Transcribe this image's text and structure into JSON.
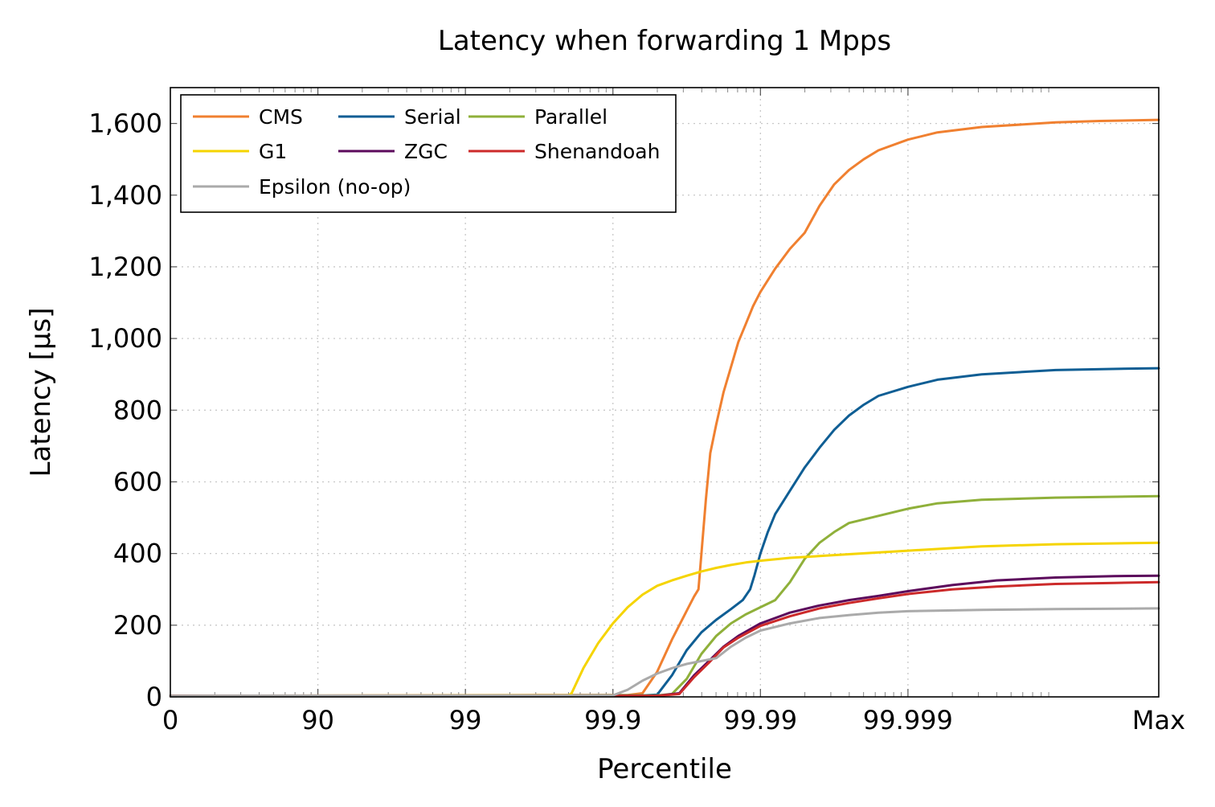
{
  "chart_data": {
    "type": "line",
    "title": "Latency when forwarding 1 Mpps",
    "xlabel": "Percentile",
    "ylabel": "Latency [μs]",
    "x_scale": "log of 1/(1-p)",
    "x_ticks": [
      {
        "label": "0",
        "nines": 0
      },
      {
        "label": "90",
        "nines": 1
      },
      {
        "label": "99",
        "nines": 2
      },
      {
        "label": "99.9",
        "nines": 3
      },
      {
        "label": "99.99",
        "nines": 4
      },
      {
        "label": "99.999",
        "nines": 5
      },
      {
        "label": "Max",
        "nines": 6.7
      }
    ],
    "xlim": [
      0,
      6.7
    ],
    "ylim": [
      0,
      1700
    ],
    "y_ticks": [
      {
        "value": 0,
        "label": "0"
      },
      {
        "value": 200,
        "label": "200"
      },
      {
        "value": 400,
        "label": "400"
      },
      {
        "value": 600,
        "label": "600"
      },
      {
        "value": 800,
        "label": "800"
      },
      {
        "value": 1000,
        "label": "1,000"
      },
      {
        "value": 1200,
        "label": "1,200"
      },
      {
        "value": 1400,
        "label": "1,400"
      },
      {
        "value": 1600,
        "label": "1,600"
      }
    ],
    "grid": true,
    "legend_position": "top-left",
    "series": [
      {
        "name": "CMS",
        "color": "#f08030",
        "points": [
          [
            0,
            3
          ],
          [
            2.5,
            5
          ],
          [
            3.1,
            5
          ],
          [
            3.2,
            10
          ],
          [
            3.3,
            70
          ],
          [
            3.4,
            160
          ],
          [
            3.5,
            240
          ],
          [
            3.55,
            280
          ],
          [
            3.58,
            300
          ],
          [
            3.6,
            400
          ],
          [
            3.63,
            550
          ],
          [
            3.66,
            680
          ],
          [
            3.7,
            760
          ],
          [
            3.75,
            850
          ],
          [
            3.8,
            920
          ],
          [
            3.85,
            990
          ],
          [
            3.9,
            1040
          ],
          [
            3.95,
            1090
          ],
          [
            4.0,
            1130
          ],
          [
            4.1,
            1195
          ],
          [
            4.2,
            1250
          ],
          [
            4.3,
            1295
          ],
          [
            4.4,
            1370
          ],
          [
            4.5,
            1430
          ],
          [
            4.6,
            1470
          ],
          [
            4.7,
            1500
          ],
          [
            4.8,
            1525
          ],
          [
            5.0,
            1555
          ],
          [
            5.2,
            1575
          ],
          [
            5.5,
            1590
          ],
          [
            6.0,
            1603
          ],
          [
            6.3,
            1607
          ],
          [
            6.7,
            1610
          ]
        ]
      },
      {
        "name": "Serial",
        "color": "#0f5e94",
        "points": [
          [
            0,
            3
          ],
          [
            3.2,
            4
          ],
          [
            3.3,
            6
          ],
          [
            3.4,
            60
          ],
          [
            3.5,
            130
          ],
          [
            3.6,
            180
          ],
          [
            3.7,
            215
          ],
          [
            3.8,
            245
          ],
          [
            3.88,
            270
          ],
          [
            3.93,
            300
          ],
          [
            3.96,
            340
          ],
          [
            4.0,
            400
          ],
          [
            4.05,
            460
          ],
          [
            4.1,
            510
          ],
          [
            4.2,
            575
          ],
          [
            4.3,
            640
          ],
          [
            4.4,
            695
          ],
          [
            4.5,
            745
          ],
          [
            4.6,
            785
          ],
          [
            4.7,
            815
          ],
          [
            4.8,
            840
          ],
          [
            5.0,
            865
          ],
          [
            5.2,
            885
          ],
          [
            5.5,
            900
          ],
          [
            6.0,
            912
          ],
          [
            6.5,
            916
          ],
          [
            6.7,
            917
          ]
        ]
      },
      {
        "name": "Parallel",
        "color": "#8fb03a",
        "points": [
          [
            0,
            3
          ],
          [
            3.3,
            4
          ],
          [
            3.4,
            8
          ],
          [
            3.5,
            50
          ],
          [
            3.6,
            120
          ],
          [
            3.7,
            170
          ],
          [
            3.8,
            205
          ],
          [
            3.9,
            230
          ],
          [
            4.0,
            250
          ],
          [
            4.1,
            270
          ],
          [
            4.2,
            320
          ],
          [
            4.3,
            385
          ],
          [
            4.4,
            430
          ],
          [
            4.5,
            460
          ],
          [
            4.6,
            485
          ],
          [
            4.8,
            505
          ],
          [
            5.0,
            525
          ],
          [
            5.2,
            540
          ],
          [
            5.5,
            550
          ],
          [
            6.0,
            556
          ],
          [
            6.5,
            559
          ],
          [
            6.7,
            560
          ]
        ]
      },
      {
        "name": "G1",
        "color": "#f5d400",
        "points": [
          [
            0,
            3
          ],
          [
            2.7,
            4
          ],
          [
            2.72,
            10
          ],
          [
            2.8,
            80
          ],
          [
            2.9,
            150
          ],
          [
            3.0,
            205
          ],
          [
            3.1,
            250
          ],
          [
            3.2,
            285
          ],
          [
            3.3,
            310
          ],
          [
            3.4,
            325
          ],
          [
            3.5,
            338
          ],
          [
            3.6,
            350
          ],
          [
            3.7,
            360
          ],
          [
            3.8,
            368
          ],
          [
            3.9,
            375
          ],
          [
            4.0,
            380
          ],
          [
            4.2,
            388
          ],
          [
            4.4,
            393
          ],
          [
            4.6,
            398
          ],
          [
            5.0,
            408
          ],
          [
            5.5,
            420
          ],
          [
            6.0,
            426
          ],
          [
            6.7,
            430
          ]
        ]
      },
      {
        "name": "ZGC",
        "color": "#5c0a5c",
        "points": [
          [
            0,
            3
          ],
          [
            3.3,
            3
          ],
          [
            3.45,
            10
          ],
          [
            3.55,
            60
          ],
          [
            3.65,
            100
          ],
          [
            3.75,
            140
          ],
          [
            3.85,
            170
          ],
          [
            4.0,
            205
          ],
          [
            4.2,
            235
          ],
          [
            4.4,
            255
          ],
          [
            4.6,
            270
          ],
          [
            4.8,
            282
          ],
          [
            5.0,
            295
          ],
          [
            5.3,
            312
          ],
          [
            5.6,
            325
          ],
          [
            6.0,
            333
          ],
          [
            6.4,
            337
          ],
          [
            6.7,
            338
          ]
        ]
      },
      {
        "name": "Shenandoah",
        "color": "#cc2a2a",
        "points": [
          [
            0,
            3
          ],
          [
            3.3,
            3
          ],
          [
            3.45,
            8
          ],
          [
            3.55,
            55
          ],
          [
            3.65,
            95
          ],
          [
            3.75,
            138
          ],
          [
            3.85,
            165
          ],
          [
            4.0,
            198
          ],
          [
            4.2,
            225
          ],
          [
            4.4,
            247
          ],
          [
            4.6,
            262
          ],
          [
            4.8,
            275
          ],
          [
            5.0,
            287
          ],
          [
            5.3,
            300
          ],
          [
            5.6,
            308
          ],
          [
            6.0,
            315
          ],
          [
            6.4,
            318
          ],
          [
            6.7,
            320
          ]
        ]
      },
      {
        "name": "Epsilon (no-op)",
        "color": "#aaaaaa",
        "points": [
          [
            0,
            3
          ],
          [
            3.0,
            4
          ],
          [
            3.1,
            20
          ],
          [
            3.2,
            45
          ],
          [
            3.3,
            65
          ],
          [
            3.4,
            80
          ],
          [
            3.5,
            92
          ],
          [
            3.6,
            100
          ],
          [
            3.7,
            108
          ],
          [
            3.8,
            140
          ],
          [
            3.9,
            165
          ],
          [
            4.0,
            185
          ],
          [
            4.2,
            205
          ],
          [
            4.4,
            220
          ],
          [
            4.6,
            228
          ],
          [
            4.8,
            235
          ],
          [
            5.0,
            239
          ],
          [
            5.5,
            243
          ],
          [
            6.0,
            245
          ],
          [
            6.7,
            247
          ]
        ]
      }
    ]
  }
}
